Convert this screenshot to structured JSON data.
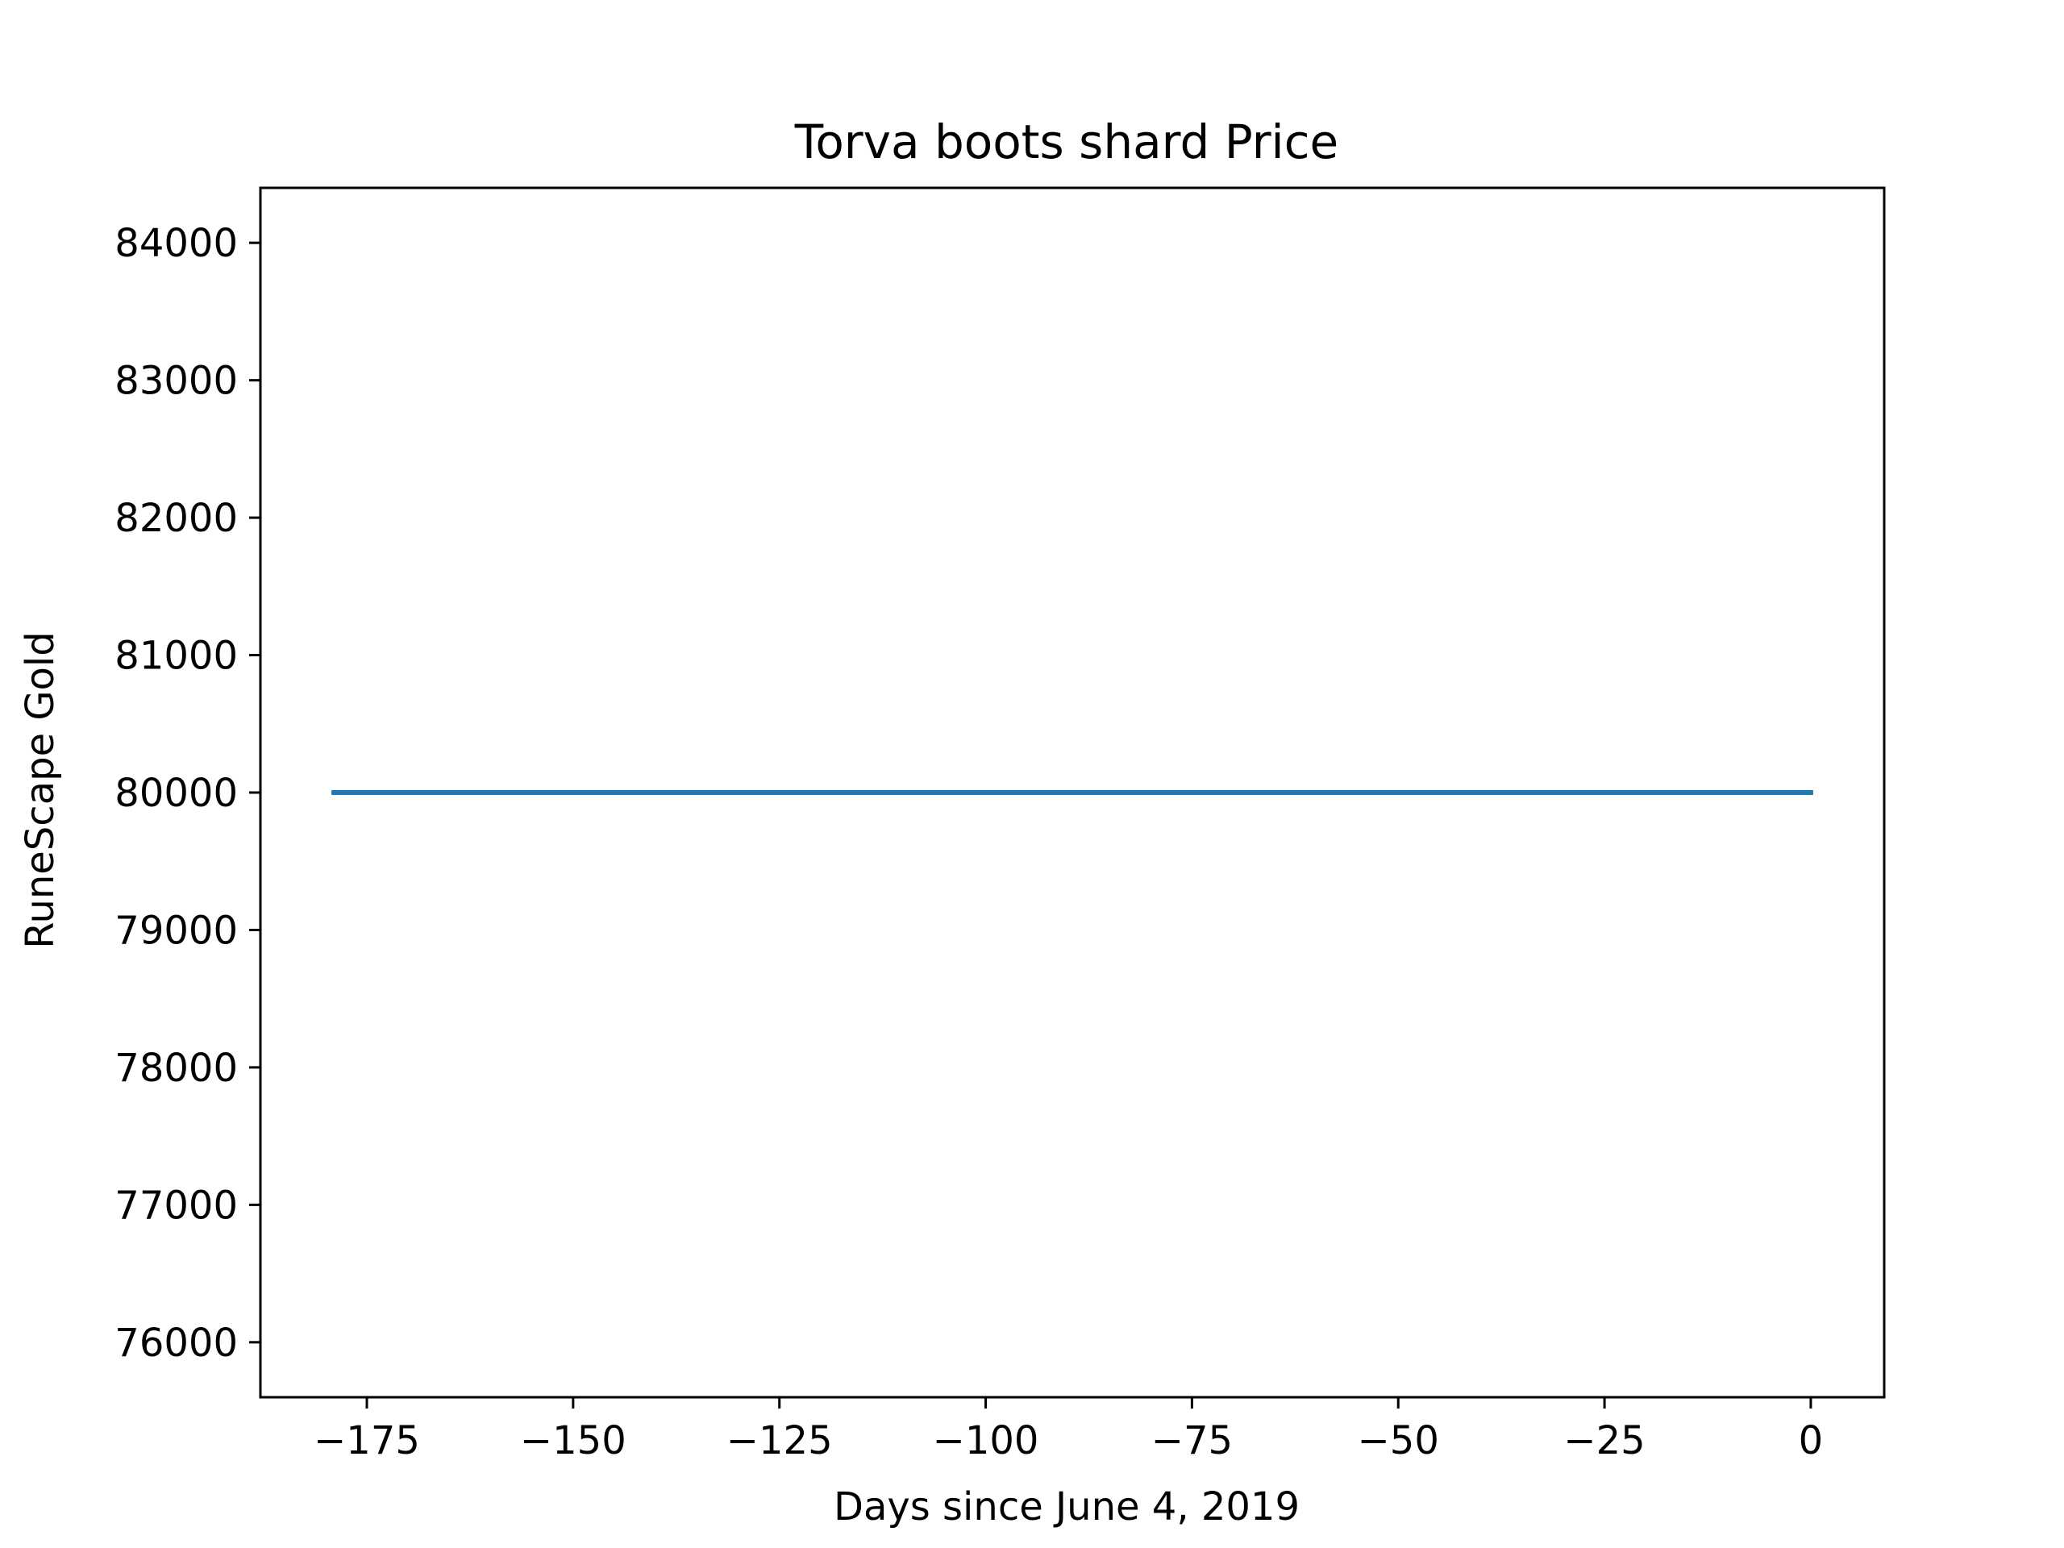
{
  "chart_data": {
    "type": "line",
    "title": "Torva boots shard Price",
    "xlabel": "Days since June 4, 2019",
    "ylabel": "RuneScape Gold",
    "xlim": [
      -187.9,
      8.9
    ],
    "ylim": [
      75600,
      84400
    ],
    "grid": false,
    "legend": "none",
    "x_ticks": [
      -175,
      -150,
      -125,
      -100,
      -75,
      -50,
      -25,
      0
    ],
    "x_tick_labels": [
      "−175",
      "−150",
      "−125",
      "−100",
      "−75",
      "−50",
      "−25",
      "0"
    ],
    "y_ticks": [
      76000,
      77000,
      78000,
      79000,
      80000,
      81000,
      82000,
      83000,
      84000
    ],
    "y_tick_labels": [
      "76000",
      "77000",
      "78000",
      "79000",
      "80000",
      "81000",
      "82000",
      "83000",
      "84000"
    ],
    "series": [
      {
        "name": "Torva boots shard",
        "color": "#1f77b4",
        "x": [
          -179,
          0
        ],
        "y": [
          80000,
          80000
        ]
      }
    ]
  }
}
